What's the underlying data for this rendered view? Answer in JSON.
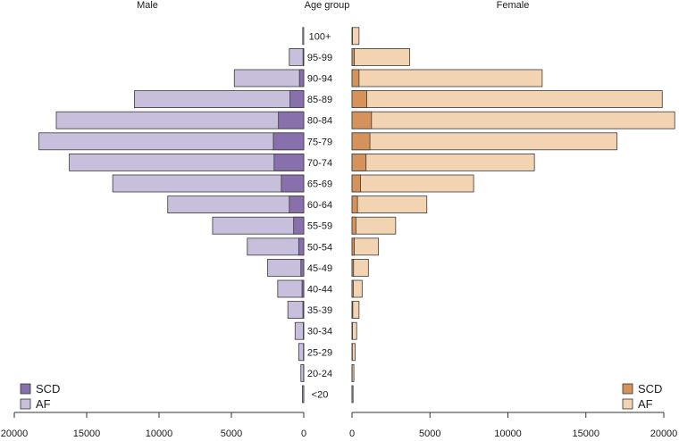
{
  "chart_data": {
    "type": "bar",
    "subtype": "population-pyramid",
    "title_center": "Age group",
    "title_left": "Male",
    "title_right": "Female",
    "categories": [
      "100+",
      "95-99",
      "90-94",
      "85-89",
      "80-84",
      "75-79",
      "70-74",
      "65-69",
      "60-64",
      "55-59",
      "50-54",
      "45-49",
      "40-44",
      "35-39",
      "30-34",
      "25-29",
      "20-24",
      "<20"
    ],
    "xlim": [
      0,
      20000
    ],
    "x_ticks": [
      0,
      5000,
      10000,
      15000,
      20000
    ],
    "x_tick_labels": [
      "0",
      "5000",
      "10000",
      "15000",
      "20000"
    ],
    "male": {
      "series": [
        {
          "name": "SCD",
          "values": [
            0,
            50,
            300,
            950,
            1750,
            2100,
            2050,
            1550,
            1000,
            700,
            350,
            200,
            120,
            60,
            30,
            20,
            10,
            5
          ]
        },
        {
          "name": "AF",
          "values": [
            50,
            1000,
            4800,
            11700,
            17100,
            18300,
            16200,
            13200,
            9400,
            6300,
            3900,
            2500,
            1800,
            1100,
            600,
            350,
            200,
            100
          ]
        }
      ],
      "colors": {
        "SCD": "#8770ab",
        "AF": "#c7bfdc"
      }
    },
    "female": {
      "series": [
        {
          "name": "SCD",
          "values": [
            30,
            150,
            450,
            950,
            1250,
            1150,
            900,
            550,
            350,
            250,
            150,
            100,
            80,
            50,
            30,
            20,
            10,
            5
          ]
        },
        {
          "name": "AF",
          "values": [
            450,
            3700,
            12200,
            19900,
            20700,
            17000,
            11700,
            7800,
            4800,
            2800,
            1700,
            1050,
            650,
            450,
            300,
            200,
            120,
            40
          ]
        }
      ],
      "colors": {
        "SCD": "#d6925b",
        "AF": "#f2d3b2"
      }
    },
    "legend_left": [
      {
        "label": "SCD",
        "color": "#8770ab"
      },
      {
        "label": "AF",
        "color": "#c7bfdc"
      }
    ],
    "legend_right": [
      {
        "label": "SCD",
        "color": "#d6925b"
      },
      {
        "label": "AF",
        "color": "#f2d3b2"
      }
    ],
    "legend_position": "bottom-left and bottom-right"
  }
}
